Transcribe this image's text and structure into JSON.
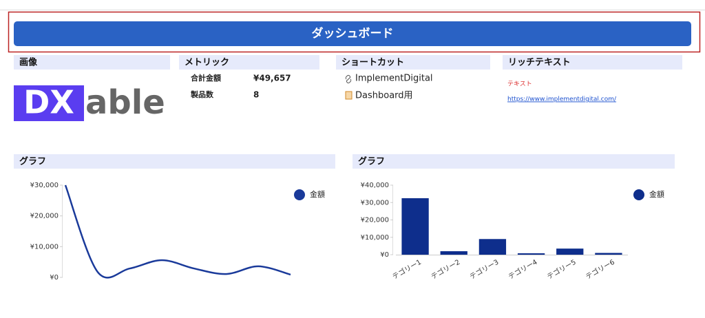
{
  "header": {
    "title": "ダッシュボード"
  },
  "image_panel": {
    "title": "画像",
    "logo": [
      "DX",
      "able"
    ]
  },
  "metrics": {
    "title": "メトリック",
    "items": [
      {
        "label": "合計金額",
        "value": "¥49,657"
      },
      {
        "label": "製品数",
        "value": "8"
      }
    ]
  },
  "shortcuts": {
    "title": "ショートカット",
    "links": [
      "ImplementDigital",
      "Dashboard用"
    ]
  },
  "richtext": {
    "title": "リッチテキスト",
    "text": "テキスト",
    "link": "https://www.implementdigital.com/"
  },
  "chart_data": [
    {
      "type": "line",
      "title": "グラフ",
      "legend": "upper right",
      "categories": [
        null,
        null,
        null,
        null,
        null,
        null,
        null,
        null
      ],
      "series": [
        {
          "name": "金額",
          "color": "#1a3a9a",
          "values": [
            30000,
            1800,
            2900,
            5600,
            2900,
            1100,
            3600,
            900
          ]
        }
      ],
      "ylim": [
        0,
        30000
      ],
      "yticks": [
        {
          "value": 0,
          "label": "¥0"
        },
        {
          "value": 10000,
          "label": "¥10,000"
        },
        {
          "value": 20000,
          "label": "¥20,000"
        },
        {
          "value": 30000,
          "label": "¥30,000"
        }
      ]
    },
    {
      "type": "bar",
      "title": "グラフ",
      "legend": "upper right",
      "categories": [
        "テゴリー1",
        "テゴリー2",
        "テゴリー3",
        "テゴリー4",
        "テゴリー5",
        "テゴリー6"
      ],
      "series": [
        {
          "name": "金額",
          "color": "#0e2e8c",
          "values": [
            32500,
            2000,
            9000,
            800,
            3500,
            1000
          ]
        }
      ],
      "ylim": [
        0,
        40000
      ],
      "yticks": [
        {
          "value": 0,
          "label": "¥0"
        },
        {
          "value": 10000,
          "label": "¥10,000"
        },
        {
          "value": 20000,
          "label": "¥20,000"
        },
        {
          "value": 30000,
          "label": "¥30,000"
        },
        {
          "value": 40000,
          "label": "¥40,000"
        }
      ]
    }
  ]
}
